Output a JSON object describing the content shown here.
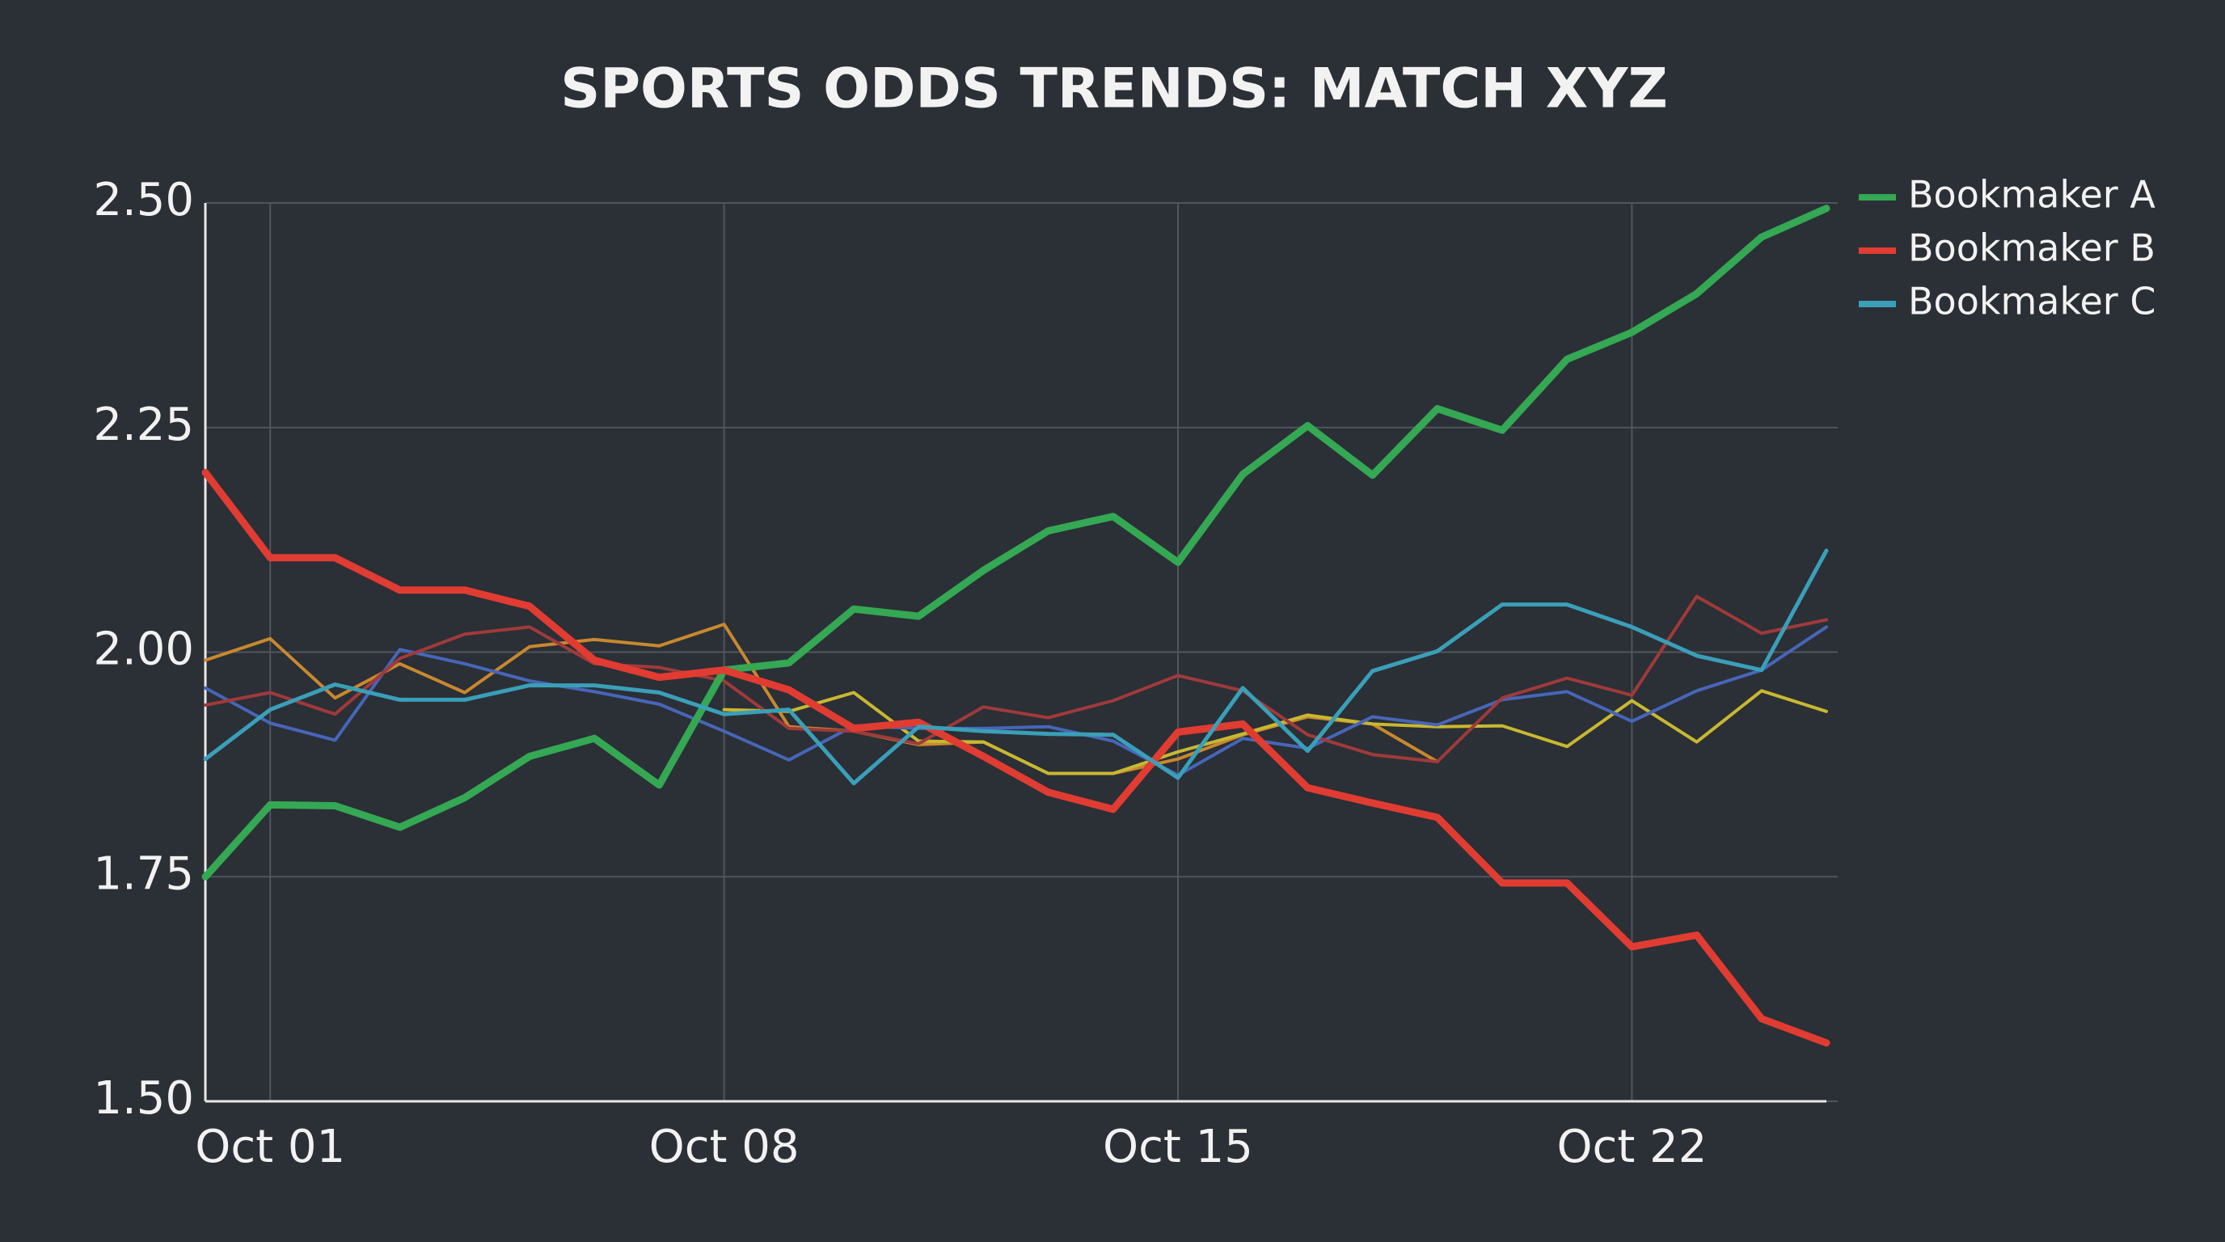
{
  "chart_data": {
    "type": "line",
    "title": "SPORTS ODDS TRENDS: MATCH XYZ",
    "x": [
      0,
      1,
      2,
      3,
      4,
      5,
      6,
      7,
      8,
      9,
      10,
      11,
      12,
      13,
      14,
      15,
      16,
      17,
      18,
      19,
      20,
      21,
      22,
      23,
      24,
      25
    ],
    "xlim": [
      0,
      25
    ],
    "xticks": [
      {
        "value": 1,
        "label": "Oct 01"
      },
      {
        "value": 8,
        "label": "Oct 08"
      },
      {
        "value": 15,
        "label": "Oct 15"
      },
      {
        "value": 22,
        "label": "Oct 22"
      }
    ],
    "ylim": [
      1.5,
      2.5
    ],
    "yticks": [
      {
        "value": 1.5,
        "label": "1.50"
      },
      {
        "value": 1.75,
        "label": "1.75"
      },
      {
        "value": 2.0,
        "label": "2.00"
      },
      {
        "value": 2.25,
        "label": "2.25"
      },
      {
        "value": 2.5,
        "label": "2.50"
      }
    ],
    "grid": true,
    "legend": "upper right",
    "series": [
      {
        "color": "#c8882e",
        "values": [
          1.991,
          2.015,
          1.949,
          1.987,
          1.955,
          2.006,
          2.014,
          2.007,
          2.031,
          1.917,
          1.912,
          1.897,
          1.9,
          1.865,
          1.865,
          1.881,
          1.908,
          1.928,
          1.92,
          1.878,
          null,
          null,
          null,
          null,
          null,
          null
        ]
      },
      {
        "color": "#c8b830",
        "values": [
          null,
          null,
          null,
          null,
          null,
          null,
          null,
          null,
          1.936,
          1.934,
          1.955,
          1.901,
          1.9,
          1.865,
          1.865,
          1.889,
          1.909,
          1.93,
          1.92,
          1.917,
          1.918,
          1.895,
          1.946,
          1.9,
          1.957,
          1.934
        ]
      },
      {
        "color": "#4666b8",
        "values": [
          1.96,
          1.921,
          1.902,
          2.003,
          1.987,
          1.968,
          1.956,
          1.942,
          1.912,
          1.88,
          1.918,
          1.915,
          1.915,
          1.917,
          1.901,
          1.863,
          1.904,
          1.893,
          1.928,
          1.919,
          1.947,
          1.956,
          1.923,
          1.957,
          1.98,
          2.028
        ]
      },
      {
        "color": "#a03a3a",
        "values": [
          1.941,
          1.955,
          1.931,
          1.993,
          2.02,
          2.028,
          1.987,
          1.983,
          1.968,
          1.915,
          1.912,
          1.898,
          1.939,
          1.927,
          1.946,
          1.974,
          1.957,
          1.908,
          1.886,
          1.878,
          1.949,
          1.971,
          1.952,
          2.062,
          2.021,
          2.036
        ]
      },
      {
        "name": "Bookmaker A",
        "color": "#34a853",
        "values": [
          1.75,
          1.83,
          1.829,
          1.805,
          1.838,
          1.884,
          1.904,
          1.852,
          1.98,
          1.988,
          2.048,
          2.04,
          2.091,
          2.135,
          2.151,
          2.1,
          2.198,
          2.252,
          2.197,
          2.271,
          2.247,
          2.326,
          2.356,
          2.399,
          2.462,
          2.494
        ]
      },
      {
        "name": "Bookmaker B",
        "color": "#e03c32",
        "values": [
          2.2,
          2.105,
          2.105,
          2.069,
          2.069,
          2.051,
          1.991,
          1.972,
          1.98,
          1.958,
          1.915,
          1.922,
          1.884,
          1.844,
          1.825,
          1.911,
          1.92,
          1.849,
          1.832,
          1.816,
          1.743,
          1.743,
          1.672,
          1.685,
          1.592,
          1.565
        ]
      },
      {
        "name": "Bookmaker C",
        "color": "#3a9fb8",
        "values": [
          1.881,
          1.936,
          1.964,
          1.947,
          1.947,
          1.963,
          1.963,
          1.955,
          1.931,
          1.936,
          1.854,
          1.917,
          1.912,
          1.909,
          1.908,
          1.86,
          1.96,
          1.89,
          1.979,
          2.001,
          2.053,
          2.053,
          2.028,
          1.996,
          1.98,
          2.113
        ]
      }
    ]
  }
}
